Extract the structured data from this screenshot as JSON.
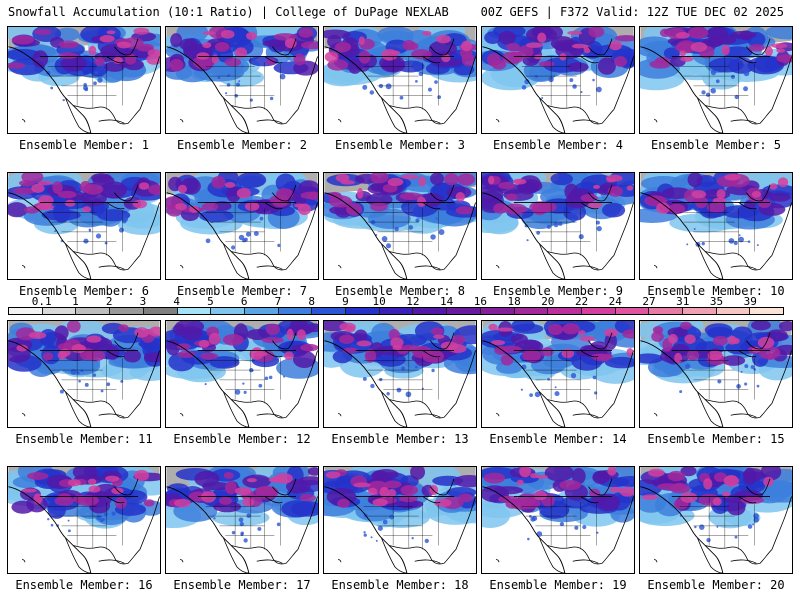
{
  "header": {
    "left": "Snowfall Accumulation (10:1 Ratio) | College of DuPage NEXLAB",
    "right": "00Z GEFS | F372 Valid: 12Z TUE DEC 02 2025"
  },
  "panels": [
    {
      "label": "Ensemble Member: 1"
    },
    {
      "label": "Ensemble Member: 2"
    },
    {
      "label": "Ensemble Member: 3"
    },
    {
      "label": "Ensemble Member: 4"
    },
    {
      "label": "Ensemble Member: 5"
    },
    {
      "label": "Ensemble Member: 6"
    },
    {
      "label": "Ensemble Member: 7"
    },
    {
      "label": "Ensemble Member: 8"
    },
    {
      "label": "Ensemble Member: 9"
    },
    {
      "label": "Ensemble Member: 10"
    },
    {
      "label": "Ensemble Member: 11"
    },
    {
      "label": "Ensemble Member: 12"
    },
    {
      "label": "Ensemble Member: 13"
    },
    {
      "label": "Ensemble Member: 14"
    },
    {
      "label": "Ensemble Member: 15"
    },
    {
      "label": "Ensemble Member: 16"
    },
    {
      "label": "Ensemble Member: 17"
    },
    {
      "label": "Ensemble Member: 18"
    },
    {
      "label": "Ensemble Member: 19"
    },
    {
      "label": "Ensemble Member: 20"
    }
  ],
  "colorbar": {
    "labels": [
      "0.1",
      "1",
      "2",
      "3",
      "4",
      "5",
      "6",
      "7",
      "8",
      "9",
      "10",
      "12",
      "14",
      "16",
      "18",
      "20",
      "22",
      "24",
      "27",
      "31",
      "35",
      "39"
    ],
    "colors": [
      "#f2f2f2",
      "#d9d9d9",
      "#bdbdbd",
      "#9a9a9a",
      "#7f7f7f",
      "#a6e2f5",
      "#7fc6ee",
      "#5aa5e6",
      "#3d7fdc",
      "#2a56d6",
      "#2432c9",
      "#3a1fb8",
      "#5219a8",
      "#6a1aa0",
      "#861f9c",
      "#a2289c",
      "#bb309c",
      "#d23f9f",
      "#e0559f",
      "#e87aa6",
      "#efa0b2",
      "#f6c6c3",
      "#fbe3d5"
    ]
  },
  "colors": {
    "background": "#ffffff",
    "snow_light": "#bdbdbd",
    "snow_cyan": "#7fc6ee",
    "snow_blue": "#2a56d6",
    "snow_purple": "#6a1aa0",
    "snow_magenta": "#d23f9f"
  }
}
